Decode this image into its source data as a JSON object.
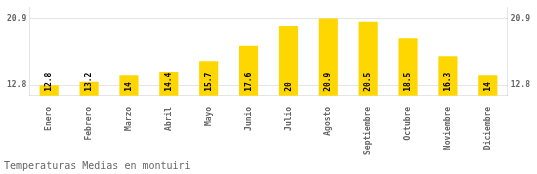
{
  "chart_data": {
    "type": "bar",
    "title": "Temperaturas Medias en montuiri",
    "categories": [
      "Enero",
      "Febrero",
      "Marzo",
      "Abril",
      "Mayo",
      "Junio",
      "Julio",
      "Agosto",
      "Septiembre",
      "Octubre",
      "Noviembre",
      "Diciembre"
    ],
    "values": [
      12.8,
      13.2,
      14.0,
      14.4,
      15.7,
      17.6,
      20.0,
      20.9,
      20.5,
      18.5,
      16.3,
      14.0
    ],
    "color": "#FFD700",
    "ylim": [
      11.5,
      22.2
    ],
    "yticks": [
      12.8,
      20.9
    ],
    "y2lim": [
      11.5,
      22.2
    ],
    "y2ticks": [
      12.8,
      20.9
    ],
    "grid": true,
    "data_labels": true
  }
}
